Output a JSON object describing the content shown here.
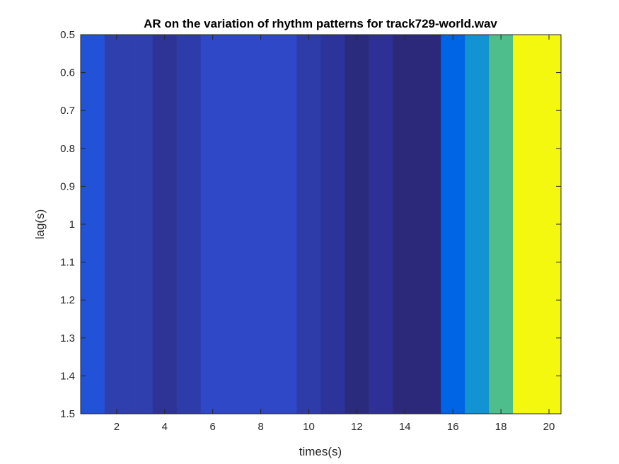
{
  "chart_data": {
    "type": "heatmap",
    "title": "AR on the variation of rhythm patterns for track729-world.wav",
    "xlabel": "times(s)",
    "ylabel": "lag(s)",
    "xlim": [
      0.5,
      20.5
    ],
    "ylim": [
      0.5,
      1.5
    ],
    "y_direction": "reversed",
    "x_ticks": [
      2,
      4,
      6,
      8,
      10,
      12,
      14,
      16,
      18,
      20
    ],
    "x_tick_labels": [
      "2",
      "4",
      "6",
      "8",
      "10",
      "12",
      "14",
      "16",
      "18",
      "20"
    ],
    "y_ticks": [
      0.5,
      0.6,
      0.7,
      0.8,
      0.9,
      1.0,
      1.1,
      1.2,
      1.3,
      1.4,
      1.5
    ],
    "y_tick_labels": [
      "0.5",
      "0.6",
      "0.7",
      "0.8",
      "0.9",
      "1",
      "1.1",
      "1.2",
      "1.3",
      "1.4",
      "1.5"
    ],
    "colormap": "parula",
    "grid": false,
    "legend": "none",
    "x": [
      1,
      2,
      3,
      4,
      5,
      6,
      7,
      8,
      9,
      10,
      11,
      12,
      13,
      14,
      15,
      16,
      17,
      18,
      19,
      20
    ],
    "y": [
      1.0
    ],
    "values": [
      [
        0.14,
        0.07,
        0.07,
        0.03,
        0.06,
        0.08,
        0.1,
        0.1,
        0.1,
        0.07,
        0.04,
        0.01,
        0.04,
        0.01,
        0.01,
        0.2,
        0.3,
        0.52,
        0.97,
        0.97
      ]
    ],
    "colors": [
      "#2152d8",
      "#2f3fae",
      "#2f3fae",
      "#2e3496",
      "#2e3ca9",
      "#2e48c7",
      "#2e48c7",
      "#2e48c7",
      "#2e48c7",
      "#2e3ca9",
      "#2c339a",
      "#2b2b7d",
      "#2f3096",
      "#2d297a",
      "#2d297a",
      "#0065e4",
      "#1293d4",
      "#4ebe8d",
      "#f4f80f",
      "#f4f80f"
    ]
  }
}
